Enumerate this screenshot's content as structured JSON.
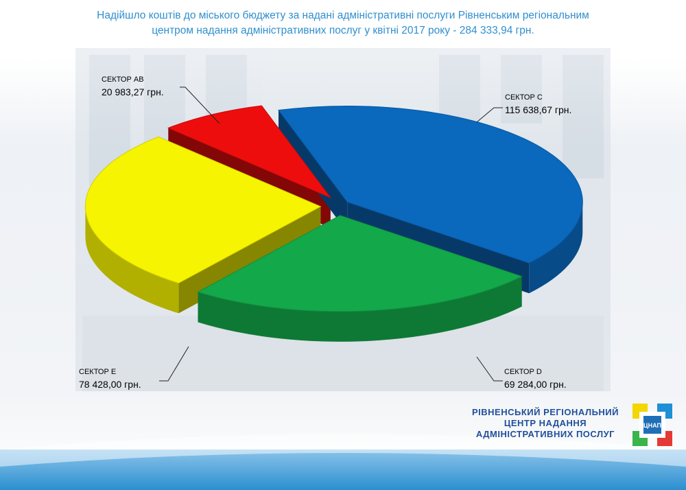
{
  "title": {
    "line1": "Надійшло коштів до міського бюджету за надані адміністративні послуги Рівненським регіональним",
    "line2": "центром надання адміністративних послуг у квітні 2017 року - 284 333,94 грн."
  },
  "chart_data": {
    "type": "pie",
    "title": "Надійшло коштів до міського бюджету за надані адміністративні послуги Рівненським регіональним центром надання адміністративних послуг у квітні 2017 року - 284 333,94 грн.",
    "total": 284333.94,
    "slices": [
      {
        "label": "СЕКТОР C",
        "value": 115638.67,
        "value_label": "115 638,67 грн.",
        "color": "#0a68bd"
      },
      {
        "label": "СЕКТОР D",
        "value": 69284.0,
        "value_label": "69 284,00 грн.",
        "color": "#13a84a"
      },
      {
        "label": "СЕКТОР E",
        "value": 78428.0,
        "value_label": "78 428,00 грн.",
        "color": "#f6f400"
      },
      {
        "label": "СЕКТОР AB",
        "value": 20983.27,
        "value_label": "20 983,27 грн.",
        "color": "#ee0d0d"
      }
    ]
  },
  "labels": {
    "c": {
      "name": "СЕКТОР C",
      "value": "115 638,67 грн."
    },
    "d": {
      "name": "СЕКТОР D",
      "value": "69 284,00 грн."
    },
    "e": {
      "name": "СЕКТОР E",
      "value": "78 428,00 грн."
    },
    "ab": {
      "name": "СЕКТОР AB",
      "value": "20 983,27 грн."
    }
  },
  "organization": {
    "line1": "РІВНЕНСЬКИЙ РЕГІОНАЛЬНИЙ",
    "line2": "ЦЕНТР НАДАННЯ",
    "line3": "АДМІНІСТРАТИВНИХ ПОСЛУГ"
  },
  "logo": {
    "text": "ЦНАП",
    "colors": [
      "#f4d600",
      "#1f8fd6",
      "#39b54a",
      "#e53935"
    ]
  }
}
